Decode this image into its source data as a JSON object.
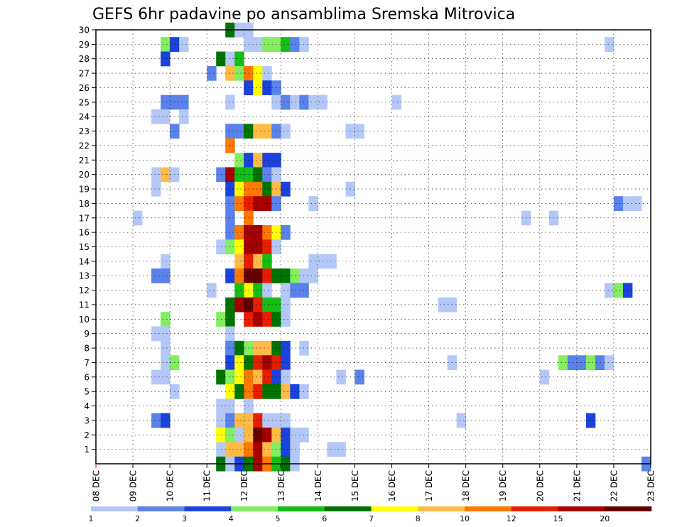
{
  "chart_data": {
    "type": "heatmap",
    "title": "GEFS 6hr padavine po ansamblima Sremska Mitrovica",
    "xlabel": "",
    "ylabel": "",
    "x_ticks": [
      "08 DEC",
      "09 DEC",
      "10 DEC",
      "11 DEC",
      "12 DEC",
      "13 DEC",
      "14 DEC",
      "15 DEC",
      "16 DEC",
      "17 DEC",
      "18 DEC",
      "19 DEC",
      "20 DEC",
      "21 DEC",
      "22 DEC",
      "23 DEC"
    ],
    "x_range_days": [
      0,
      15
    ],
    "time_step_hours": 6,
    "y_ticks": [
      1,
      2,
      3,
      4,
      5,
      6,
      7,
      8,
      9,
      10,
      11,
      12,
      13,
      14,
      15,
      16,
      17,
      18,
      19,
      20,
      21,
      22,
      23,
      24,
      25,
      26,
      27,
      28,
      29,
      30
    ],
    "ylim": [
      0,
      30
    ],
    "grid": true,
    "colorbar": {
      "placement": "bottom",
      "labels": [
        "1",
        "2",
        "3",
        "4",
        "5",
        "6",
        "7",
        "8",
        "10",
        "12",
        "15",
        "20"
      ],
      "colors": [
        "#b4c8f8",
        "#5a82ea",
        "#1a42dc",
        "#82ee60",
        "#14be14",
        "#007300",
        "#ffff00",
        "#ffbb46",
        "#ff7800",
        "#e61e00",
        "#a50000",
        "#640000"
      ]
    },
    "cells": [
      [
        30,
        14,
        6
      ],
      [
        30,
        15,
        1
      ],
      [
        30,
        16,
        1
      ],
      [
        29,
        7,
        4
      ],
      [
        29,
        8,
        3
      ],
      [
        29,
        9,
        1
      ],
      [
        29,
        16,
        1
      ],
      [
        29,
        17,
        1
      ],
      [
        29,
        18,
        4
      ],
      [
        29,
        19,
        4
      ],
      [
        29,
        20,
        5
      ],
      [
        29,
        21,
        2
      ],
      [
        29,
        22,
        1
      ],
      [
        29,
        55,
        1
      ],
      [
        28,
        7,
        3
      ],
      [
        28,
        13,
        6
      ],
      [
        28,
        14,
        1
      ],
      [
        28,
        15,
        5
      ],
      [
        27,
        12,
        2
      ],
      [
        27,
        14,
        8
      ],
      [
        27,
        15,
        4
      ],
      [
        27,
        16,
        9
      ],
      [
        27,
        17,
        7
      ],
      [
        27,
        18,
        1
      ],
      [
        26,
        16,
        3
      ],
      [
        26,
        17,
        7
      ],
      [
        26,
        18,
        3
      ],
      [
        26,
        19,
        2
      ],
      [
        25,
        7,
        2
      ],
      [
        25,
        8,
        2
      ],
      [
        25,
        9,
        2
      ],
      [
        25,
        14,
        1
      ],
      [
        25,
        19,
        1
      ],
      [
        25,
        20,
        2
      ],
      [
        25,
        21,
        1
      ],
      [
        25,
        22,
        2
      ],
      [
        25,
        23,
        1
      ],
      [
        25,
        24,
        1
      ],
      [
        25,
        32,
        1
      ],
      [
        24,
        6,
        1
      ],
      [
        24,
        7,
        1
      ],
      [
        24,
        9,
        1
      ],
      [
        23,
        8,
        2
      ],
      [
        23,
        14,
        2
      ],
      [
        23,
        15,
        2
      ],
      [
        23,
        16,
        6
      ],
      [
        23,
        17,
        8
      ],
      [
        23,
        18,
        8
      ],
      [
        23,
        19,
        2
      ],
      [
        23,
        20,
        1
      ],
      [
        23,
        27,
        1
      ],
      [
        23,
        28,
        1
      ],
      [
        22,
        14,
        9
      ],
      [
        21,
        15,
        4
      ],
      [
        21,
        16,
        3
      ],
      [
        21,
        17,
        8
      ],
      [
        21,
        18,
        3
      ],
      [
        21,
        19,
        3
      ],
      [
        20,
        6,
        1
      ],
      [
        20,
        7,
        8
      ],
      [
        20,
        8,
        1
      ],
      [
        20,
        13,
        2
      ],
      [
        20,
        14,
        11
      ],
      [
        20,
        15,
        5
      ],
      [
        20,
        16,
        5
      ],
      [
        20,
        17,
        6
      ],
      [
        20,
        18,
        2
      ],
      [
        20,
        19,
        1
      ],
      [
        19,
        6,
        1
      ],
      [
        19,
        14,
        3
      ],
      [
        19,
        15,
        7
      ],
      [
        19,
        16,
        9
      ],
      [
        19,
        17,
        9
      ],
      [
        19,
        18,
        6
      ],
      [
        19,
        19,
        8
      ],
      [
        19,
        20,
        3
      ],
      [
        19,
        27,
        1
      ],
      [
        18,
        14,
        2
      ],
      [
        18,
        15,
        9
      ],
      [
        18,
        16,
        10
      ],
      [
        18,
        17,
        11
      ],
      [
        18,
        18,
        11
      ],
      [
        18,
        19,
        2
      ],
      [
        18,
        23,
        1
      ],
      [
        18,
        56,
        2
      ],
      [
        18,
        57,
        1
      ],
      [
        18,
        58,
        1
      ],
      [
        17,
        4,
        1
      ],
      [
        17,
        14,
        2
      ],
      [
        17,
        16,
        9
      ],
      [
        17,
        46,
        1
      ],
      [
        17,
        49,
        1
      ],
      [
        16,
        14,
        2
      ],
      [
        16,
        15,
        9
      ],
      [
        16,
        16,
        11
      ],
      [
        16,
        17,
        11
      ],
      [
        16,
        18,
        9
      ],
      [
        16,
        19,
        7
      ],
      [
        16,
        20,
        2
      ],
      [
        15,
        13,
        1
      ],
      [
        15,
        14,
        4
      ],
      [
        15,
        15,
        7
      ],
      [
        15,
        16,
        11
      ],
      [
        15,
        17,
        11
      ],
      [
        15,
        18,
        10
      ],
      [
        15,
        19,
        1
      ],
      [
        14,
        7,
        1
      ],
      [
        14,
        15,
        8
      ],
      [
        14,
        16,
        10
      ],
      [
        14,
        17,
        8
      ],
      [
        14,
        18,
        5
      ],
      [
        14,
        23,
        1
      ],
      [
        14,
        24,
        1
      ],
      [
        14,
        25,
        1
      ],
      [
        13,
        6,
        2
      ],
      [
        13,
        7,
        2
      ],
      [
        13,
        14,
        3
      ],
      [
        13,
        15,
        9
      ],
      [
        13,
        16,
        12
      ],
      [
        13,
        17,
        12
      ],
      [
        13,
        18,
        10
      ],
      [
        13,
        19,
        6
      ],
      [
        13,
        20,
        6
      ],
      [
        13,
        21,
        4
      ],
      [
        13,
        22,
        1
      ],
      [
        13,
        23,
        1
      ],
      [
        12,
        12,
        1
      ],
      [
        12,
        15,
        5
      ],
      [
        12,
        16,
        7
      ],
      [
        12,
        17,
        5
      ],
      [
        12,
        18,
        1
      ],
      [
        12,
        20,
        1
      ],
      [
        12,
        21,
        2
      ],
      [
        12,
        22,
        2
      ],
      [
        12,
        55,
        1
      ],
      [
        12,
        56,
        4
      ],
      [
        12,
        57,
        3
      ],
      [
        11,
        14,
        6
      ],
      [
        11,
        15,
        11
      ],
      [
        11,
        16,
        12
      ],
      [
        11,
        17,
        10
      ],
      [
        11,
        18,
        5
      ],
      [
        11,
        19,
        5
      ],
      [
        11,
        20,
        1
      ],
      [
        11,
        37,
        1
      ],
      [
        11,
        38,
        1
      ],
      [
        10,
        7,
        4
      ],
      [
        10,
        13,
        4
      ],
      [
        10,
        14,
        6
      ],
      [
        10,
        16,
        10
      ],
      [
        10,
        17,
        11
      ],
      [
        10,
        18,
        10
      ],
      [
        10,
        19,
        6
      ],
      [
        10,
        20,
        1
      ],
      [
        9,
        6,
        1
      ],
      [
        9,
        7,
        1
      ],
      [
        9,
        14,
        1
      ],
      [
        8,
        7,
        1
      ],
      [
        8,
        14,
        2
      ],
      [
        8,
        15,
        6
      ],
      [
        8,
        16,
        4
      ],
      [
        8,
        17,
        8
      ],
      [
        8,
        18,
        8
      ],
      [
        8,
        19,
        6
      ],
      [
        8,
        20,
        3
      ],
      [
        8,
        22,
        1
      ],
      [
        7,
        7,
        1
      ],
      [
        7,
        8,
        4
      ],
      [
        7,
        14,
        3
      ],
      [
        7,
        15,
        7
      ],
      [
        7,
        16,
        6
      ],
      [
        7,
        17,
        10
      ],
      [
        7,
        18,
        11
      ],
      [
        7,
        19,
        10
      ],
      [
        7,
        20,
        3
      ],
      [
        7,
        38,
        1
      ],
      [
        7,
        50,
        4
      ],
      [
        7,
        51,
        2
      ],
      [
        7,
        52,
        2
      ],
      [
        7,
        53,
        4
      ],
      [
        7,
        54,
        2
      ],
      [
        7,
        55,
        1
      ],
      [
        6,
        6,
        1
      ],
      [
        6,
        7,
        1
      ],
      [
        6,
        13,
        6
      ],
      [
        6,
        14,
        4
      ],
      [
        6,
        15,
        7
      ],
      [
        6,
        16,
        9
      ],
      [
        6,
        17,
        8
      ],
      [
        6,
        18,
        10
      ],
      [
        6,
        19,
        3
      ],
      [
        6,
        20,
        1
      ],
      [
        6,
        26,
        1
      ],
      [
        6,
        28,
        2
      ],
      [
        6,
        48,
        1
      ],
      [
        5,
        8,
        1
      ],
      [
        5,
        14,
        7
      ],
      [
        5,
        15,
        6
      ],
      [
        5,
        16,
        9
      ],
      [
        5,
        17,
        10
      ],
      [
        5,
        18,
        6
      ],
      [
        5,
        19,
        6
      ],
      [
        5,
        20,
        8
      ],
      [
        5,
        21,
        3
      ],
      [
        5,
        22,
        1
      ],
      [
        4,
        13,
        1
      ],
      [
        4,
        14,
        1
      ],
      [
        4,
        16,
        1
      ],
      [
        3,
        6,
        2
      ],
      [
        3,
        7,
        3
      ],
      [
        3,
        13,
        1
      ],
      [
        3,
        14,
        2
      ],
      [
        3,
        15,
        8
      ],
      [
        3,
        16,
        8
      ],
      [
        3,
        17,
        10
      ],
      [
        3,
        18,
        1
      ],
      [
        3,
        19,
        1
      ],
      [
        3,
        20,
        1
      ],
      [
        3,
        39,
        1
      ],
      [
        3,
        53,
        3
      ],
      [
        2,
        13,
        7
      ],
      [
        2,
        14,
        4
      ],
      [
        2,
        15,
        1
      ],
      [
        2,
        16,
        8
      ],
      [
        2,
        17,
        12
      ],
      [
        2,
        18,
        11
      ],
      [
        2,
        19,
        8
      ],
      [
        2,
        20,
        3
      ],
      [
        2,
        21,
        1
      ],
      [
        2,
        22,
        1
      ],
      [
        1,
        13,
        1
      ],
      [
        1,
        14,
        8
      ],
      [
        1,
        15,
        8
      ],
      [
        1,
        16,
        9
      ],
      [
        1,
        17,
        11
      ],
      [
        1,
        18,
        8
      ],
      [
        1,
        19,
        4
      ],
      [
        1,
        20,
        3
      ],
      [
        1,
        21,
        1
      ],
      [
        1,
        25,
        1
      ],
      [
        1,
        26,
        1
      ],
      [
        0,
        13,
        6
      ],
      [
        0,
        14,
        1
      ],
      [
        0,
        15,
        3
      ],
      [
        0,
        16,
        6
      ],
      [
        0,
        17,
        11
      ],
      [
        0,
        18,
        9
      ],
      [
        0,
        19,
        5
      ],
      [
        0,
        20,
        6
      ],
      [
        0,
        21,
        1
      ],
      [
        0,
        59,
        2
      ]
    ]
  }
}
